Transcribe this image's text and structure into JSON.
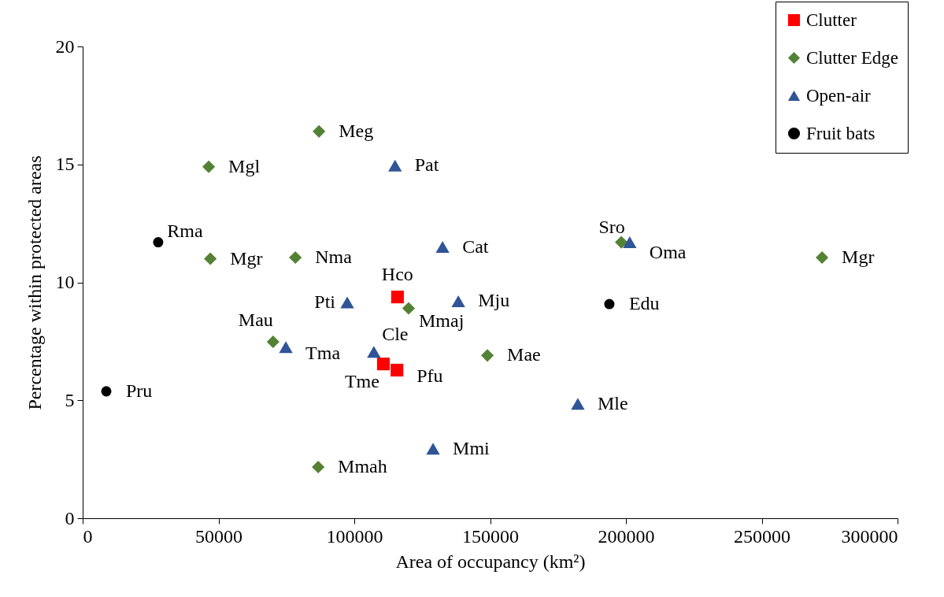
{
  "chart_data": {
    "type": "scatter",
    "xlabel": "Area of occupancy (km²)",
    "ylabel": "Percentage within protected areas",
    "xlim": [
      0,
      300000
    ],
    "xticks": [
      0,
      50000,
      100000,
      150000,
      200000,
      250000,
      300000
    ],
    "ylim": [
      0,
      20
    ],
    "yticks": [
      0,
      5,
      10,
      15,
      20
    ],
    "grid": false,
    "legend": "top right",
    "series": [
      {
        "name": "Clutter",
        "color": "#ff0000",
        "marker": "square",
        "x": [
          115900,
          110700,
          115700
        ],
        "values": [
          9.38,
          6.54,
          6.28
        ]
      },
      {
        "name": "Clutter Edge",
        "color": "#548235",
        "marker": "diamond",
        "x": [
          87000,
          46400,
          47000,
          78300,
          120000,
          70100,
          149000,
          86700,
          198300,
          272200
        ],
        "values": [
          16.4,
          14.9,
          11.0,
          11.05,
          8.9,
          7.48,
          6.9,
          2.17,
          11.7,
          11.05
        ]
      },
      {
        "name": "Open-air",
        "color": "#2f5597",
        "marker": "triangle",
        "x": [
          115000,
          132500,
          201400,
          97400,
          138300,
          74800,
          107200,
          182300,
          129000
        ],
        "values": [
          14.95,
          11.5,
          11.7,
          9.15,
          9.2,
          7.25,
          7.05,
          4.85,
          2.95
        ]
      },
      {
        "name": "Fruit bats",
        "color": "#000000",
        "marker": "circle",
        "x": [
          27800,
          193900,
          8700
        ],
        "values": [
          11.7,
          9.08,
          5.38
        ]
      }
    ],
    "annotations": [
      {
        "text": "Hco",
        "x": 115900,
        "y": 9.38
      },
      {
        "text": "Tme",
        "x": 110700,
        "y": 6.54
      },
      {
        "text": "Pfu",
        "x": 115700,
        "y": 6.28
      },
      {
        "text": "Meg",
        "x": 87000,
        "y": 16.4
      },
      {
        "text": "Mgl",
        "x": 46400,
        "y": 14.9
      },
      {
        "text": "Mgr",
        "x": 47000,
        "y": 11.0
      },
      {
        "text": "Nma",
        "x": 78300,
        "y": 11.05
      },
      {
        "text": "Mmaj",
        "x": 120000,
        "y": 8.9
      },
      {
        "text": "Mau",
        "x": 70100,
        "y": 7.48
      },
      {
        "text": "Mae",
        "x": 149000,
        "y": 6.9
      },
      {
        "text": "Mmah",
        "x": 86700,
        "y": 2.17
      },
      {
        "text": "Sro",
        "x": 198300,
        "y": 11.7
      },
      {
        "text": "Mgr",
        "x": 272200,
        "y": 11.05
      },
      {
        "text": "Pat",
        "x": 115000,
        "y": 14.95
      },
      {
        "text": "Cat",
        "x": 132500,
        "y": 11.5
      },
      {
        "text": "Oma",
        "x": 201400,
        "y": 11.7
      },
      {
        "text": "Pti",
        "x": 97400,
        "y": 9.15
      },
      {
        "text": "Mju",
        "x": 138300,
        "y": 9.2
      },
      {
        "text": "Tma",
        "x": 74800,
        "y": 7.25
      },
      {
        "text": "Cle",
        "x": 107200,
        "y": 7.05
      },
      {
        "text": "Mle",
        "x": 182300,
        "y": 4.85
      },
      {
        "text": "Mmi",
        "x": 129000,
        "y": 2.95
      },
      {
        "text": "Rma",
        "x": 27800,
        "y": 11.7
      },
      {
        "text": "Edu",
        "x": 193900,
        "y": 9.08
      },
      {
        "text": "Pru",
        "x": 8700,
        "y": 5.38
      }
    ]
  }
}
